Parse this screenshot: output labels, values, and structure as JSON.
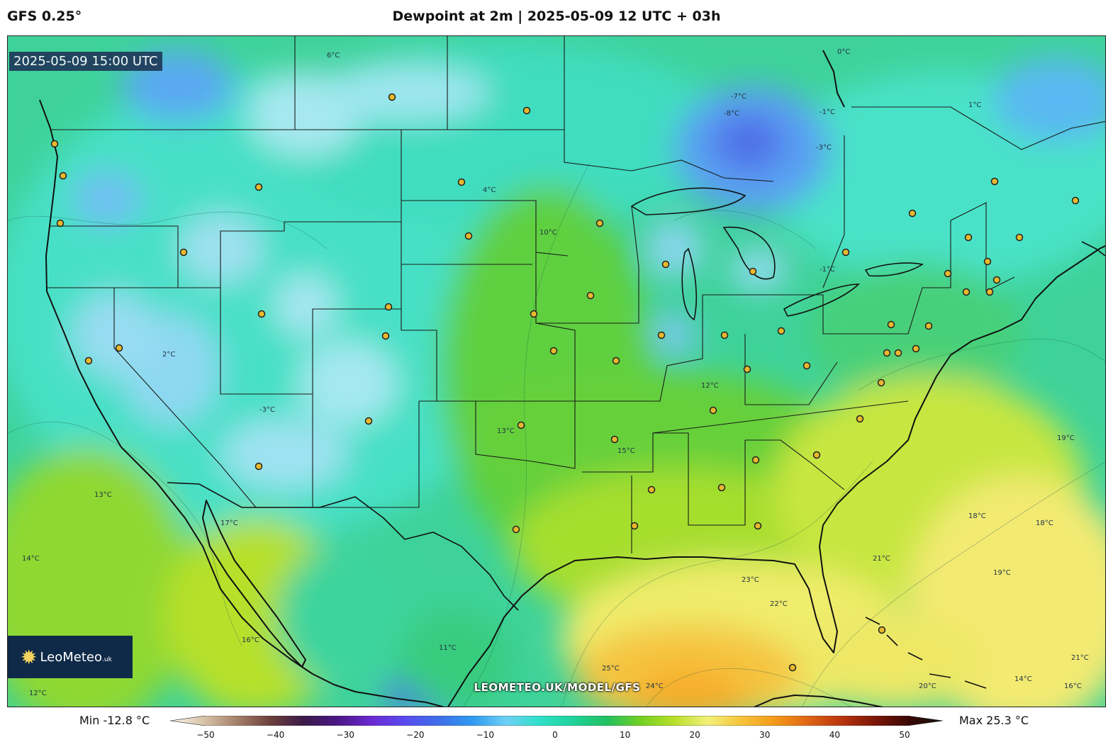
{
  "header": {
    "model": "GFS 0.25°",
    "title": "Dewpoint at 2m | 2025-05-09 12 UTC + 03h"
  },
  "map": {
    "valid_time": "2025-05-09 15:00 UTC",
    "watermark": "LEOMETEO.UK/MODEL/GFS",
    "logo_name": "LeoMeteo",
    "logo_suffix": ".uk",
    "logo_icon": "sun-icon",
    "contour_labels": [
      "0°C",
      "-1°C",
      "-7°C",
      "-8°C",
      "-3°C",
      "1°C",
      "2°C",
      "4°C",
      "-1°C",
      "6°C",
      "10°C",
      "12°C",
      "13°C",
      "15°C",
      "-3°C",
      "19°C",
      "21°C",
      "22°C",
      "23°C",
      "25°C",
      "24°C",
      "20°C",
      "18°C",
      "16°C",
      "11°C",
      "17°C",
      "14°C",
      "12°C",
      "13°C",
      "19°C",
      "21°C",
      "18°C",
      "14°C",
      "16°C"
    ]
  },
  "legend": {
    "min_label": "Min -12.8 °C",
    "max_label": "Max 25.3 °C",
    "unit": "°C",
    "ticks": [
      "−50",
      "−40",
      "−30",
      "−20",
      "−10",
      "0",
      "10",
      "20",
      "30",
      "40",
      "50"
    ],
    "range": [
      -50,
      50
    ],
    "colors": [
      "#fdf8ef",
      "#d8c3a8",
      "#a47f6a",
      "#6a3f3a",
      "#3b1a4b",
      "#4b1787",
      "#6b2ad2",
      "#5a4bf0",
      "#3f6fe8",
      "#2f9af0",
      "#6fd0f5",
      "#2fe0c8",
      "#1fd39a",
      "#22c060",
      "#72d022",
      "#b8e02a",
      "#f2f07a",
      "#f6c43a",
      "#f39a1a",
      "#e06414",
      "#b8340e",
      "#7a1608",
      "#3a0804",
      "#101010"
    ],
    "colorbar_colors": [
      "#fdf8ef",
      "#d8c3a8",
      "#a47f6a",
      "#6a3f3a",
      "#3b1a4b",
      "#4b1787",
      "#6b2ad2",
      "#5a4bf0",
      "#3f6fe8",
      "#2f9af0",
      "#6fd0f5",
      "#2fe0c8",
      "#1fd39a",
      "#22c060",
      "#72d022",
      "#b8e02a",
      "#f2f07a",
      "#f6c43a",
      "#f39a1a",
      "#e06414",
      "#b8340e",
      "#7a1608",
      "#3a0804",
      "#101010"
    ]
  },
  "cities": [
    [
      76,
      202
    ],
    [
      88,
      247
    ],
    [
      84,
      314
    ],
    [
      258,
      355
    ],
    [
      364,
      263
    ],
    [
      552,
      136
    ],
    [
      742,
      155
    ],
    [
      650,
      256
    ],
    [
      660,
      332
    ],
    [
      845,
      314
    ],
    [
      938,
      372
    ],
    [
      1061,
      382
    ],
    [
      1192,
      355
    ],
    [
      1286,
      300
    ],
    [
      1402,
      255
    ],
    [
      1516,
      282
    ],
    [
      1365,
      334
    ],
    [
      1437,
      334
    ],
    [
      1392,
      368
    ],
    [
      1336,
      385
    ],
    [
      1405,
      394
    ],
    [
      1362,
      411
    ],
    [
      1395,
      411
    ],
    [
      1256,
      457
    ],
    [
      1309,
      459
    ],
    [
      1291,
      491
    ],
    [
      1266,
      497
    ],
    [
      1250,
      497
    ],
    [
      1242,
      539
    ],
    [
      1137,
      515
    ],
    [
      1101,
      466
    ],
    [
      1021,
      472
    ],
    [
      1053,
      520
    ],
    [
      932,
      472
    ],
    [
      868,
      508
    ],
    [
      832,
      416
    ],
    [
      752,
      442
    ],
    [
      780,
      494
    ],
    [
      547,
      432
    ],
    [
      543,
      473
    ],
    [
      368,
      442
    ],
    [
      167,
      490
    ],
    [
      124,
      508
    ],
    [
      519,
      593
    ],
    [
      734,
      599
    ],
    [
      866,
      619
    ],
    [
      1005,
      578
    ],
    [
      1212,
      590
    ],
    [
      1151,
      641
    ],
    [
      1065,
      648
    ],
    [
      1017,
      687
    ],
    [
      918,
      690
    ],
    [
      894,
      741
    ],
    [
      1068,
      741
    ],
    [
      727,
      746
    ],
    [
      364,
      657
    ],
    [
      1243,
      888
    ],
    [
      1117,
      941
    ]
  ]
}
